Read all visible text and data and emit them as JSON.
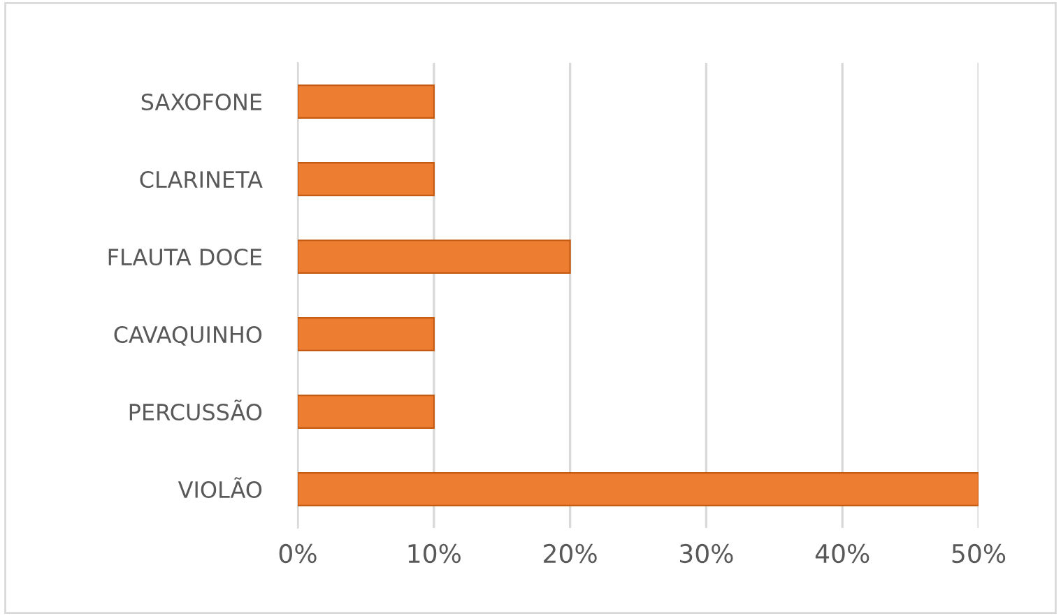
{
  "chart_data": {
    "type": "bar",
    "orientation": "horizontal",
    "categories": [
      "SAXOFONE",
      "CLARINETA",
      "FLAUTA DOCE",
      "CAVAQUINHO",
      "PERCUSSÃO",
      "VIOLÃO"
    ],
    "values": [
      10,
      10,
      20,
      10,
      10,
      50
    ],
    "color": "#ed7d31",
    "xlim": [
      0,
      50
    ],
    "xticks": [
      {
        "value": 0,
        "label": "0%"
      },
      {
        "value": 10,
        "label": "10%"
      },
      {
        "value": 20,
        "label": "20%"
      },
      {
        "value": 30,
        "label": "30%"
      },
      {
        "value": 40,
        "label": "40%"
      },
      {
        "value": 50,
        "label": "50%"
      }
    ],
    "grid": "x",
    "legend": false
  }
}
